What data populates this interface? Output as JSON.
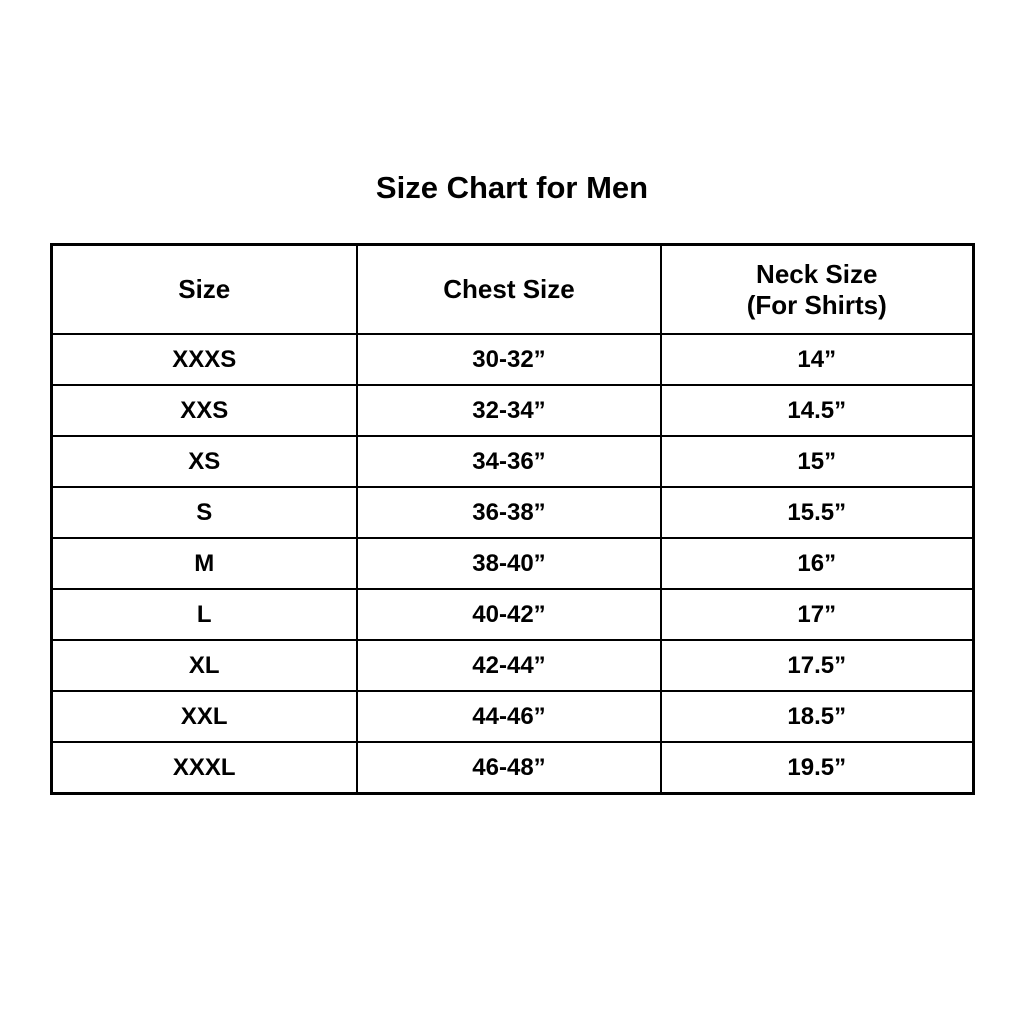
{
  "page": {
    "title": "Size Chart for Men"
  },
  "table": {
    "headers": [
      {
        "label": "Size",
        "sublabel": ""
      },
      {
        "label": "Chest Size",
        "sublabel": ""
      },
      {
        "label": "Neck Size",
        "sublabel": "(For Shirts)"
      }
    ],
    "rows": [
      {
        "size": "XXXS",
        "chest": "30-32”",
        "neck": "14”"
      },
      {
        "size": "XXS",
        "chest": "32-34”",
        "neck": "14.5”"
      },
      {
        "size": "XS",
        "chest": "34-36”",
        "neck": "15”"
      },
      {
        "size": "S",
        "chest": "36-38”",
        "neck": "15.5”"
      },
      {
        "size": "M",
        "chest": "38-40”",
        "neck": "16”"
      },
      {
        "size": "L",
        "chest": "40-42”",
        "neck": "17”"
      },
      {
        "size": "XL",
        "chest": "42-44”",
        "neck": "17.5”"
      },
      {
        "size": "XXL",
        "chest": "44-46”",
        "neck": "18.5”"
      },
      {
        "size": "XXXL",
        "chest": "46-48”",
        "neck": "19.5”"
      }
    ]
  },
  "colors": {
    "background": "#ffffff",
    "text": "#000000",
    "border": "#000000"
  },
  "chart_data": {
    "type": "table",
    "title": "Size Chart for Men",
    "columns": [
      "Size",
      "Chest Size",
      "Neck Size (For Shirts)"
    ],
    "rows": [
      [
        "XXXS",
        "30-32”",
        "14”"
      ],
      [
        "XXS",
        "32-34”",
        "14.5”"
      ],
      [
        "XS",
        "34-36”",
        "15”"
      ],
      [
        "S",
        "36-38”",
        "15.5”"
      ],
      [
        "M",
        "38-40”",
        "16”"
      ],
      [
        "L",
        "40-42”",
        "17”"
      ],
      [
        "XL",
        "42-44”",
        "17.5”"
      ],
      [
        "XXL",
        "44-46”",
        "18.5”"
      ],
      [
        "XXXL",
        "46-48”",
        "19.5”"
      ]
    ],
    "neck_sizes_numeric_inches": [
      14,
      14.5,
      15,
      15.5,
      16,
      17,
      17.5,
      18.5,
      19.5
    ],
    "chest_ranges_numeric_inches": [
      [
        30,
        32
      ],
      [
        32,
        34
      ],
      [
        34,
        36
      ],
      [
        36,
        38
      ],
      [
        38,
        40
      ],
      [
        40,
        42
      ],
      [
        42,
        44
      ],
      [
        44,
        46
      ],
      [
        46,
        48
      ]
    ],
    "legend_position": "none",
    "grid": "table-borders"
  }
}
